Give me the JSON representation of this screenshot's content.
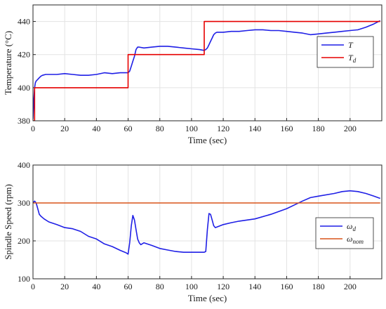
{
  "chart_data": [
    {
      "type": "line",
      "xlabel": "Time (sec)",
      "ylabel": "Temperature (°C)",
      "xlim": [
        0,
        220
      ],
      "ylim": [
        380,
        450
      ],
      "xticks": [
        0,
        20,
        40,
        60,
        80,
        100,
        120,
        140,
        160,
        180,
        200
      ],
      "yticks": [
        380,
        400,
        420,
        440
      ],
      "grid": true,
      "legend_position": "right",
      "series": [
        {
          "name": "T",
          "name_base": "T",
          "name_sub": "",
          "color": "#1f1fe6",
          "step": false,
          "x": [
            0,
            0.5,
            1,
            1.5,
            2,
            3,
            4,
            5,
            6,
            8,
            10,
            15,
            20,
            25,
            30,
            35,
            40,
            45,
            50,
            55,
            58,
            60,
            61,
            62,
            63,
            64,
            65,
            66,
            67,
            70,
            75,
            80,
            85,
            90,
            95,
            100,
            105,
            108,
            109,
            110,
            111,
            112,
            113,
            114,
            115,
            116,
            118,
            120,
            125,
            130,
            135,
            140,
            145,
            150,
            155,
            160,
            165,
            170,
            175,
            180,
            185,
            190,
            195,
            200,
            205,
            210,
            215,
            219
          ],
          "y": [
            381,
            392,
            400,
            403,
            404,
            405,
            406,
            407,
            407.5,
            408,
            408,
            408,
            408.5,
            408,
            407.5,
            407.5,
            408,
            409,
            408.5,
            409,
            409,
            409,
            410,
            413,
            416,
            419,
            423,
            424.5,
            424.5,
            424,
            424.5,
            425,
            425,
            424.5,
            424,
            423.5,
            423,
            422.5,
            423,
            424,
            426,
            428,
            430,
            432,
            433,
            433.5,
            433.5,
            433.5,
            434,
            434,
            434.5,
            435,
            435,
            434.5,
            434.5,
            434,
            433.5,
            433,
            432,
            432.5,
            433,
            433.5,
            434,
            434.5,
            435,
            436.5,
            438.5,
            440.5
          ]
        },
        {
          "name": "T_d",
          "name_base": "T",
          "name_sub": "d",
          "color": "#e60000",
          "step": true,
          "x": [
            0,
            1,
            1,
            60,
            60,
            108,
            108,
            219
          ],
          "y": [
            380,
            380,
            400,
            400,
            420,
            420,
            440,
            440
          ]
        }
      ]
    },
    {
      "type": "line",
      "xlabel": "Time (sec)",
      "ylabel": "Spindle Speed (rpm)",
      "xlim": [
        0,
        220
      ],
      "ylim": [
        100,
        400
      ],
      "xticks": [
        0,
        20,
        40,
        60,
        80,
        100,
        120,
        140,
        160,
        180,
        200
      ],
      "yticks": [
        100,
        200,
        300,
        400
      ],
      "grid": true,
      "legend_position": "right",
      "series": [
        {
          "name": "ω_d",
          "name_base": "ω",
          "name_sub": "d",
          "color": "#1f1fe6",
          "step": false,
          "x": [
            0,
            1,
            2,
            3,
            4,
            5,
            7,
            10,
            15,
            20,
            25,
            30,
            35,
            40,
            45,
            50,
            55,
            58,
            59,
            60,
            61,
            62,
            63,
            64,
            65,
            66,
            67,
            68,
            70,
            75,
            80,
            85,
            90,
            95,
            100,
            105,
            108,
            109,
            110,
            111,
            112,
            113,
            114,
            115,
            120,
            125,
            130,
            140,
            150,
            160,
            165,
            170,
            175,
            180,
            190,
            195,
            200,
            205,
            210,
            215,
            219
          ],
          "y": [
            300,
            305,
            300,
            285,
            270,
            265,
            258,
            250,
            243,
            235,
            232,
            225,
            212,
            205,
            192,
            185,
            175,
            170,
            168,
            165,
            195,
            240,
            267,
            255,
            230,
            205,
            195,
            190,
            195,
            188,
            180,
            176,
            172,
            170,
            170,
            170,
            170,
            172,
            230,
            272,
            270,
            255,
            240,
            235,
            243,
            248,
            252,
            258,
            270,
            285,
            295,
            305,
            314,
            318,
            325,
            330,
            332,
            330,
            325,
            318,
            312
          ]
        },
        {
          "name": "ω_nom",
          "name_base": "ω",
          "name_sub": "nom",
          "color": "#d9541a",
          "step": false,
          "x": [
            0,
            219
          ],
          "y": [
            300,
            300
          ]
        }
      ]
    }
  ]
}
